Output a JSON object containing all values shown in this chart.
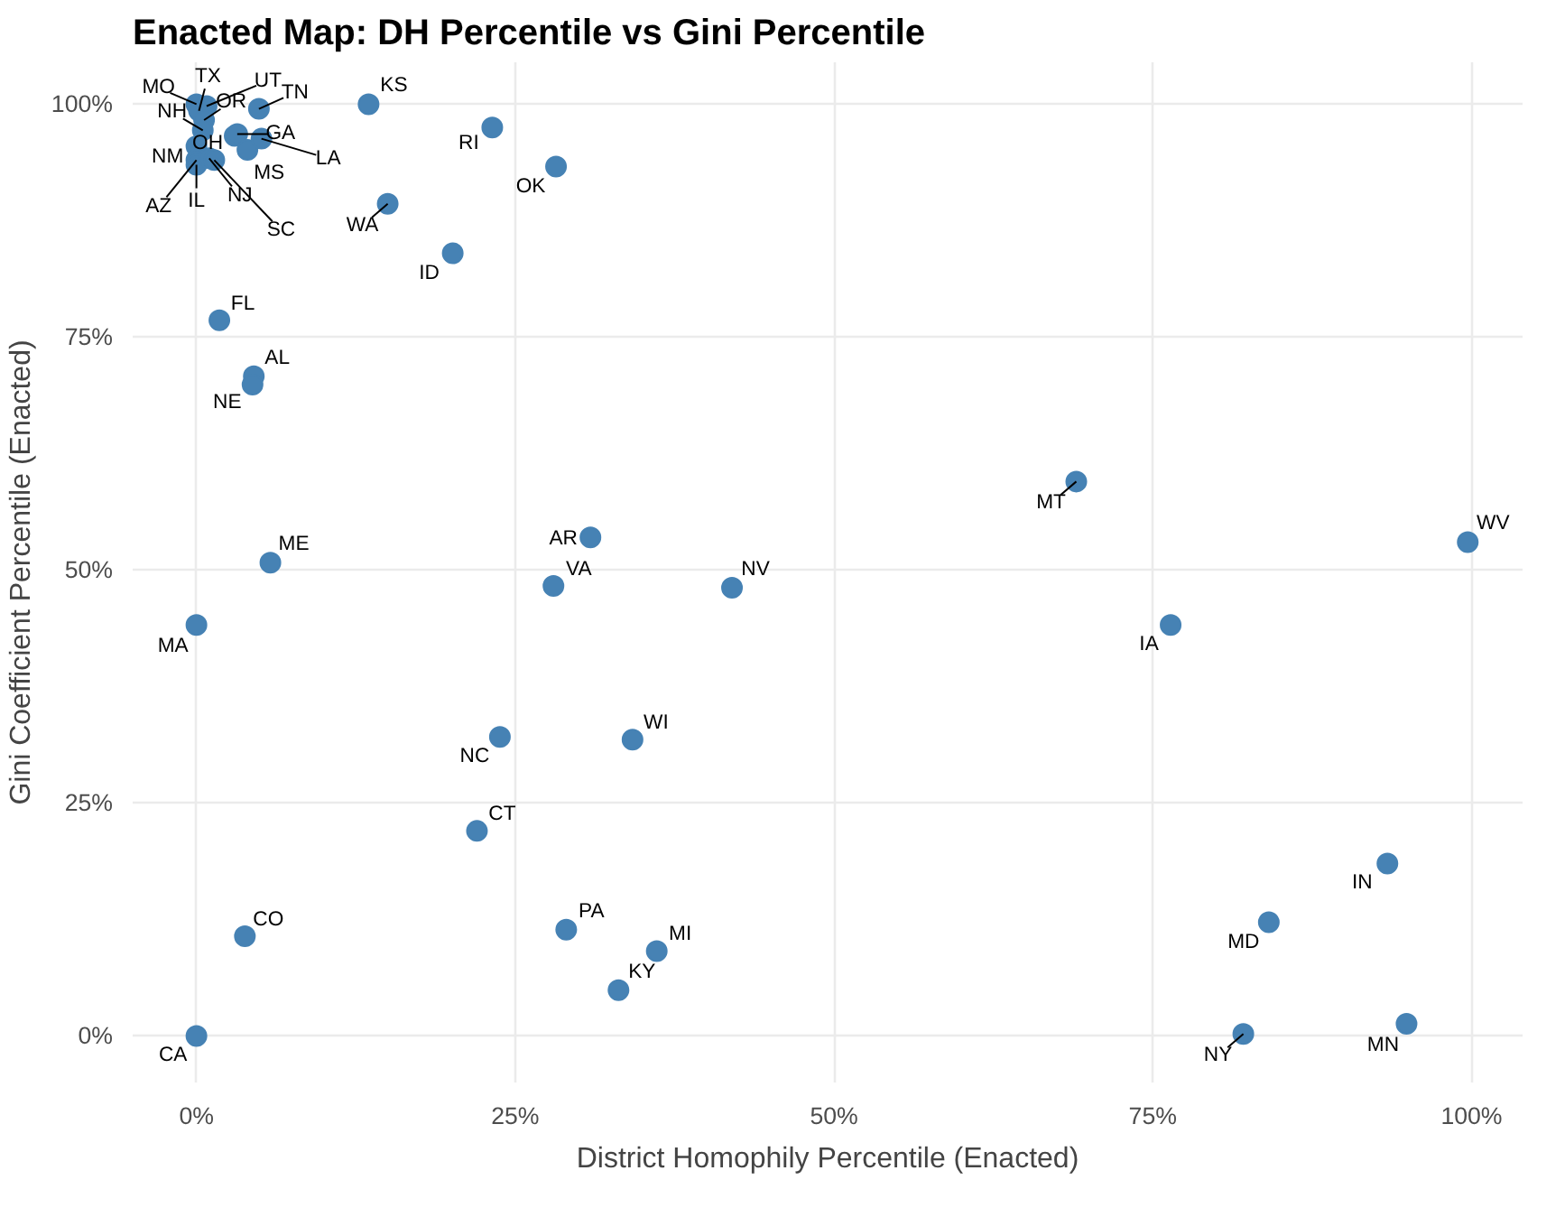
{
  "chart_data": {
    "type": "scatter",
    "title": "Enacted Map: DH Percentile vs Gini Percentile",
    "xlabel": "District Homophily Percentile (Enacted)",
    "ylabel": "Gini Coefficient Percentile (Enacted)",
    "x": [
      0,
      3.8,
      29,
      36.1,
      33.1,
      22,
      23.8,
      34.2,
      0,
      28,
      42,
      30.9,
      5.8,
      69,
      76.4,
      99.7,
      93.4,
      84.1,
      82.1,
      94.9,
      4.5,
      4.4,
      1.8,
      13.5,
      23.2,
      28.2,
      15,
      20.1,
      4.9,
      3,
      3.2,
      4,
      5.1,
      0,
      0.2,
      0.8,
      0.6,
      0.5,
      0,
      0,
      0,
      1,
      1.4
    ],
    "values": [
      0,
      10.7,
      11.4,
      9.1,
      4.9,
      22,
      32.1,
      31.8,
      44.1,
      48.3,
      48.1,
      53.5,
      50.8,
      59.5,
      44.1,
      53,
      18.5,
      12.2,
      0.2,
      1.3,
      70.8,
      69.9,
      76.8,
      100,
      97.5,
      93.3,
      89.3,
      84,
      99.5,
      96.6,
      96.8,
      95.1,
      96.3,
      100,
      99.3,
      99.8,
      98.3,
      97.2,
      95.5,
      94,
      93.5,
      94.2,
      94
    ],
    "value_labels": [
      "CA",
      "CO",
      "PA",
      "MI",
      "KY",
      "CT",
      "NC",
      "WI",
      "MA",
      "VA",
      "NV",
      "AR",
      "ME",
      "MT",
      "IA",
      "WV",
      "IN",
      "MD",
      "NY",
      "MN",
      "AL",
      "NE",
      "FL",
      "KS",
      "RI",
      "OK",
      "WA",
      "ID",
      "TN",
      "OH",
      "GA",
      "MS",
      "LA",
      "MO",
      "TX",
      "UT",
      "OR",
      "NH",
      "NM",
      "AZ",
      "IL",
      "NJ",
      "SC"
    ],
    "color": "#4682b4",
    "marker": "circle",
    "grid": true,
    "xlim": [
      -5,
      104
    ],
    "ylim": [
      -5,
      104.5
    ],
    "xticks": [
      {
        "value": 0,
        "label": "0%"
      },
      {
        "value": 25,
        "label": "25%"
      },
      {
        "value": 50,
        "label": "50%"
      },
      {
        "value": 75,
        "label": "75%"
      },
      {
        "value": 100,
        "label": "100%"
      }
    ],
    "yticks": [
      {
        "value": 0,
        "label": "0%"
      },
      {
        "value": 25,
        "label": "25%"
      },
      {
        "value": 50,
        "label": "50%"
      },
      {
        "value": 75,
        "label": "75%"
      },
      {
        "value": 100,
        "label": "100%"
      }
    ]
  }
}
